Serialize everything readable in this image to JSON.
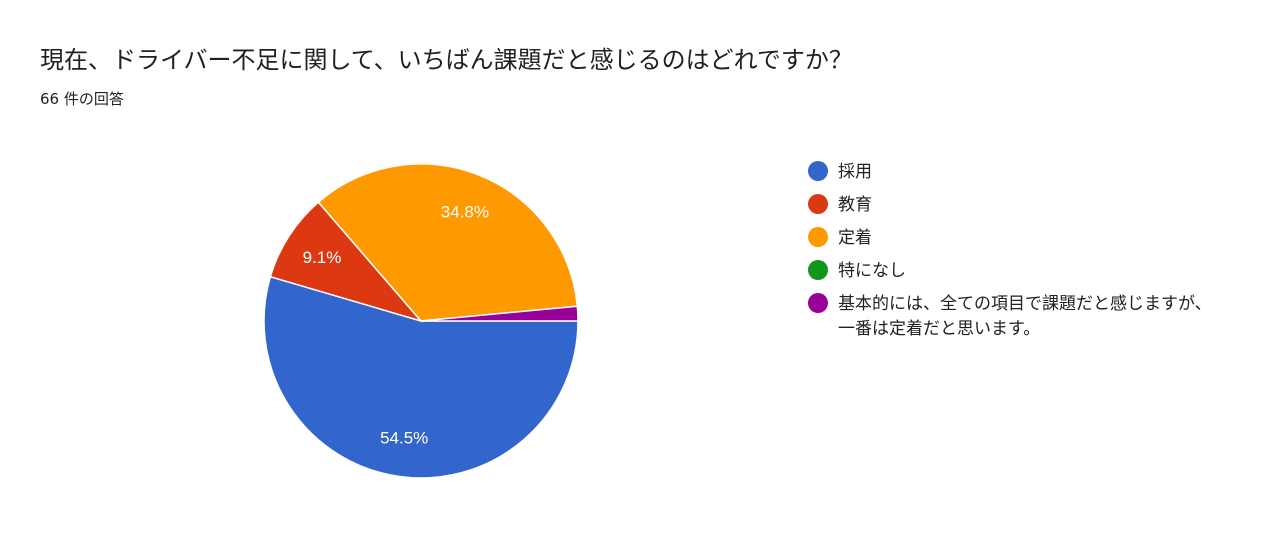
{
  "header": {
    "title": "現在、ドライバー不足に関して、いちばん課題だと感じるのはどれですか？",
    "response_count": "66 件の回答"
  },
  "chart_data": {
    "type": "pie",
    "title": "現在、ドライバー不足に関して、いちばん課題だと感じるのはどれですか？",
    "total_responses": 66,
    "slices": [
      {
        "label": "採用",
        "value": 54.5,
        "display": "54.5%",
        "color": "#3366cc"
      },
      {
        "label": "教育",
        "value": 9.1,
        "display": "9.1%",
        "color": "#dc3912"
      },
      {
        "label": "定着",
        "value": 34.8,
        "display": "34.8%",
        "color": "#ff9900"
      },
      {
        "label": "特になし",
        "value": 0,
        "display": "",
        "color": "#109618"
      },
      {
        "label": "基本的には、全ての項目で課題だと感じますが、一番は定着だと思います。",
        "value": 1.5,
        "display": "",
        "color": "#990099"
      }
    ],
    "legend_position": "right"
  }
}
